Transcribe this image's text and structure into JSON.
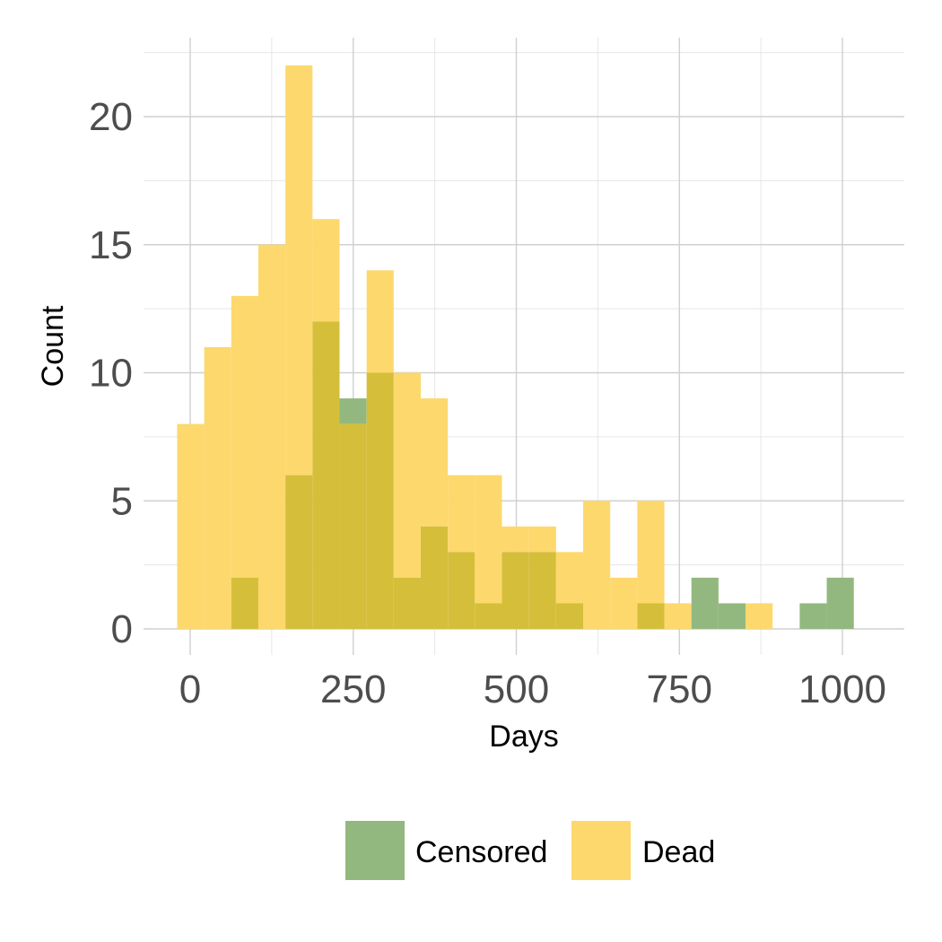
{
  "chart_data": {
    "type": "histogram",
    "xlabel": "Days",
    "ylabel": "Count",
    "xlim": [
      -50,
      1045
    ],
    "ylim": [
      -1,
      22.5
    ],
    "x_ticks": [
      0,
      250,
      500,
      750,
      1000
    ],
    "y_ticks": [
      0,
      5,
      10,
      15,
      20
    ],
    "grid": true,
    "legend_position": "bottom",
    "bin_width": 41.5,
    "bin_starts": [
      -20,
      21.5,
      63,
      104.5,
      146,
      187.5,
      229,
      270.5,
      312,
      353.5,
      395,
      436.5,
      478,
      519.5,
      561,
      602.5,
      644,
      685.5,
      727,
      768.5,
      810,
      851.5,
      893,
      934.5,
      976
    ],
    "series": [
      {
        "name": "Censored",
        "color": "#93b87f",
        "values": [
          0,
          0,
          2,
          0,
          6,
          12,
          9,
          10,
          2,
          4,
          3,
          1,
          3,
          3,
          1,
          0,
          0,
          1,
          0,
          2,
          1,
          0,
          0,
          1,
          2
        ]
      },
      {
        "name": "Dead",
        "color": "#fdd86d",
        "values": [
          8,
          11,
          13,
          15,
          22,
          16,
          8,
          14,
          10,
          9,
          6,
          6,
          4,
          4,
          3,
          5,
          2,
          5,
          1,
          0,
          0,
          1,
          0,
          0,
          0
        ]
      }
    ],
    "overlap_color": "#d5bf3a"
  }
}
